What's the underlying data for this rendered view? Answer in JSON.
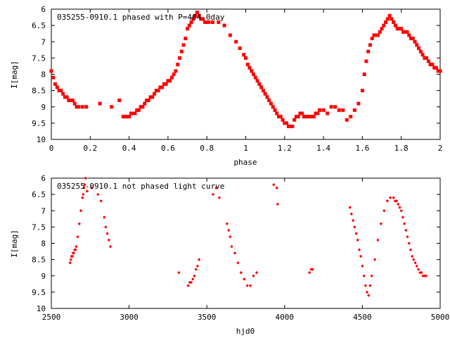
{
  "chart_data": [
    {
      "type": "scatter",
      "title": "035255-0910.1 phased with P=404.0day",
      "xlabel": "phase",
      "ylabel": "I[mag]",
      "xlim": [
        0,
        2
      ],
      "ylim": [
        10,
        6
      ],
      "y_inverted": true,
      "xticks": [
        "0",
        "0.2",
        "0.4",
        "0.6",
        "0.8",
        "1",
        "1.2",
        "1.4",
        "1.6",
        "1.8",
        "2"
      ],
      "yticks": [
        "6",
        "6.5",
        "7",
        "7.5",
        "8",
        "8.5",
        "9",
        "9.5",
        "10"
      ],
      "marker_color": "#ff0000",
      "series": [
        {
          "x": [
            0.0,
            0.01,
            0.02,
            0.03,
            0.04,
            0.05,
            0.06,
            0.07,
            0.08,
            0.09,
            0.1,
            0.11,
            0.12,
            0.13,
            0.14,
            0.16,
            0.18,
            0.25,
            0.31,
            0.35,
            0.37,
            0.38,
            0.39,
            0.4,
            0.41,
            0.42,
            0.43,
            0.44,
            0.45,
            0.46,
            0.47,
            0.48,
            0.49,
            0.5,
            0.51,
            0.52,
            0.53,
            0.54,
            0.55,
            0.56,
            0.57,
            0.58,
            0.59,
            0.6,
            0.61,
            0.62,
            0.63,
            0.64,
            0.65,
            0.66,
            0.67,
            0.68,
            0.69,
            0.7,
            0.71,
            0.72,
            0.73,
            0.74,
            0.75,
            0.76,
            0.77,
            0.78,
            0.79,
            0.8,
            0.81,
            0.83,
            0.86,
            0.89,
            0.92,
            0.95,
            0.97,
            0.99,
            1.0,
            1.01,
            1.02,
            1.03,
            1.04,
            1.05,
            1.06,
            1.07,
            1.08,
            1.09,
            1.1,
            1.11,
            1.12,
            1.13,
            1.14,
            1.15,
            1.16,
            1.17,
            1.18,
            1.19,
            1.2,
            1.21,
            1.22,
            1.23,
            1.24,
            1.25,
            1.26,
            1.27,
            1.28,
            1.29,
            1.3,
            1.31,
            1.32,
            1.33,
            1.34,
            1.35,
            1.36,
            1.37,
            1.38,
            1.4,
            1.42,
            1.44,
            1.46,
            1.48,
            1.5,
            1.52,
            1.54,
            1.56,
            1.58,
            1.6,
            1.61,
            1.62,
            1.63,
            1.64,
            1.65,
            1.66,
            1.67,
            1.68,
            1.69,
            1.7,
            1.71,
            1.72,
            1.73,
            1.74,
            1.75,
            1.76,
            1.77,
            1.78,
            1.79,
            1.8,
            1.81,
            1.82,
            1.83,
            1.84,
            1.85,
            1.86,
            1.87,
            1.88,
            1.89,
            1.9,
            1.91,
            1.92,
            1.93,
            1.94,
            1.95,
            1.96,
            1.97,
            1.98,
            1.99,
            2.0
          ],
          "y": [
            7.9,
            8.1,
            8.3,
            8.4,
            8.5,
            8.5,
            8.6,
            8.7,
            8.7,
            8.8,
            8.8,
            8.8,
            8.9,
            9.0,
            9.0,
            9.0,
            9.0,
            8.9,
            9.0,
            8.8,
            9.3,
            9.3,
            9.3,
            9.3,
            9.2,
            9.2,
            9.2,
            9.1,
            9.1,
            9.0,
            9.0,
            8.9,
            8.8,
            8.8,
            8.7,
            8.7,
            8.6,
            8.5,
            8.5,
            8.4,
            8.4,
            8.3,
            8.3,
            8.2,
            8.2,
            8.1,
            8.0,
            7.9,
            7.7,
            7.5,
            7.3,
            7.1,
            6.9,
            6.6,
            6.5,
            6.4,
            6.3,
            6.2,
            6.1,
            6.2,
            6.3,
            6.3,
            6.4,
            6.4,
            6.4,
            6.4,
            6.4,
            6.5,
            6.8,
            7.0,
            7.2,
            7.4,
            7.5,
            7.7,
            7.8,
            7.9,
            8.0,
            8.1,
            8.2,
            8.3,
            8.4,
            8.5,
            8.6,
            8.7,
            8.8,
            8.9,
            9.0,
            9.1,
            9.2,
            9.3,
            9.3,
            9.4,
            9.5,
            9.5,
            9.6,
            9.6,
            9.6,
            9.4,
            9.3,
            9.3,
            9.2,
            9.2,
            9.3,
            9.3,
            9.3,
            9.3,
            9.3,
            9.3,
            9.2,
            9.2,
            9.1,
            9.1,
            9.2,
            9.0,
            9.0,
            9.1,
            9.1,
            9.4,
            9.3,
            9.1,
            8.9,
            8.5,
            8.0,
            7.6,
            7.3,
            7.1,
            6.9,
            6.8,
            6.8,
            6.8,
            6.7,
            6.6,
            6.5,
            6.4,
            6.3,
            6.2,
            6.3,
            6.4,
            6.5,
            6.6,
            6.6,
            6.6,
            6.7,
            6.7,
            6.7,
            6.8,
            6.9,
            6.9,
            7.0,
            7.1,
            7.2,
            7.3,
            7.4,
            7.5,
            7.5,
            7.6,
            7.7,
            7.7,
            7.8,
            7.8,
            7.9,
            7.9
          ]
        }
      ],
      "grid": false
    },
    {
      "type": "scatter",
      "title": "035255-0910.1 not phased light curve",
      "xlabel": "hjd0",
      "ylabel": "I[mag]",
      "xlim": [
        2500,
        5000
      ],
      "ylim": [
        10,
        6
      ],
      "y_inverted": true,
      "xticks": [
        "2500",
        "3000",
        "3500",
        "4000",
        "4500",
        "5000"
      ],
      "yticks": [
        "6",
        "6.5",
        "7",
        "7.5",
        "8",
        "8.5",
        "9",
        "9.5",
        "10"
      ],
      "marker_color": "#ff0000",
      "series": [
        {
          "x": [
            2620,
            2625,
            2630,
            2635,
            2640,
            2645,
            2650,
            2655,
            2660,
            2670,
            2680,
            2690,
            2700,
            2705,
            2710,
            2715,
            2720,
            2730,
            2760,
            2800,
            2820,
            2840,
            2850,
            2860,
            2870,
            2880,
            3320,
            3380,
            3390,
            3400,
            3410,
            3420,
            3430,
            3440,
            3450,
            3540,
            3560,
            3580,
            3630,
            3640,
            3650,
            3660,
            3680,
            3700,
            3720,
            3740,
            3760,
            3780,
            3800,
            3820,
            3930,
            3950,
            3955,
            4160,
            4170,
            4180,
            4420,
            4430,
            4440,
            4450,
            4460,
            4470,
            4480,
            4490,
            4500,
            4510,
            4520,
            4530,
            4540,
            4550,
            4560,
            4580,
            4600,
            4620,
            4640,
            4660,
            4680,
            4700,
            4710,
            4720,
            4730,
            4740,
            4750,
            4760,
            4770,
            4780,
            4790,
            4800,
            4810,
            4820,
            4830,
            4840,
            4850,
            4860,
            4870,
            4880,
            4890,
            4900,
            4910
          ],
          "y": [
            8.6,
            8.5,
            8.4,
            8.4,
            8.3,
            8.3,
            8.2,
            8.2,
            8.1,
            7.8,
            7.4,
            7.0,
            6.6,
            6.5,
            6.3,
            6.2,
            6.0,
            6.4,
            6.3,
            6.5,
            6.7,
            7.2,
            7.5,
            7.7,
            7.9,
            8.1,
            8.9,
            9.3,
            9.2,
            9.2,
            9.1,
            9.0,
            8.8,
            8.7,
            8.5,
            6.5,
            6.3,
            6.6,
            7.4,
            7.6,
            7.8,
            8.1,
            8.3,
            8.6,
            8.9,
            9.1,
            9.3,
            9.3,
            9.0,
            8.9,
            6.2,
            6.3,
            6.8,
            8.9,
            8.8,
            8.8,
            6.9,
            7.1,
            7.3,
            7.5,
            7.7,
            7.9,
            8.2,
            8.4,
            8.7,
            9.0,
            9.3,
            9.5,
            9.6,
            9.3,
            9.0,
            8.5,
            7.9,
            7.4,
            7.0,
            6.7,
            6.6,
            6.6,
            6.7,
            6.7,
            6.8,
            6.9,
            7.0,
            7.2,
            7.4,
            7.6,
            7.8,
            8.0,
            8.2,
            8.4,
            8.5,
            8.6,
            8.7,
            8.8,
            8.9,
            8.9,
            9.0,
            9.0,
            9.0
          ]
        }
      ],
      "grid": false
    }
  ]
}
